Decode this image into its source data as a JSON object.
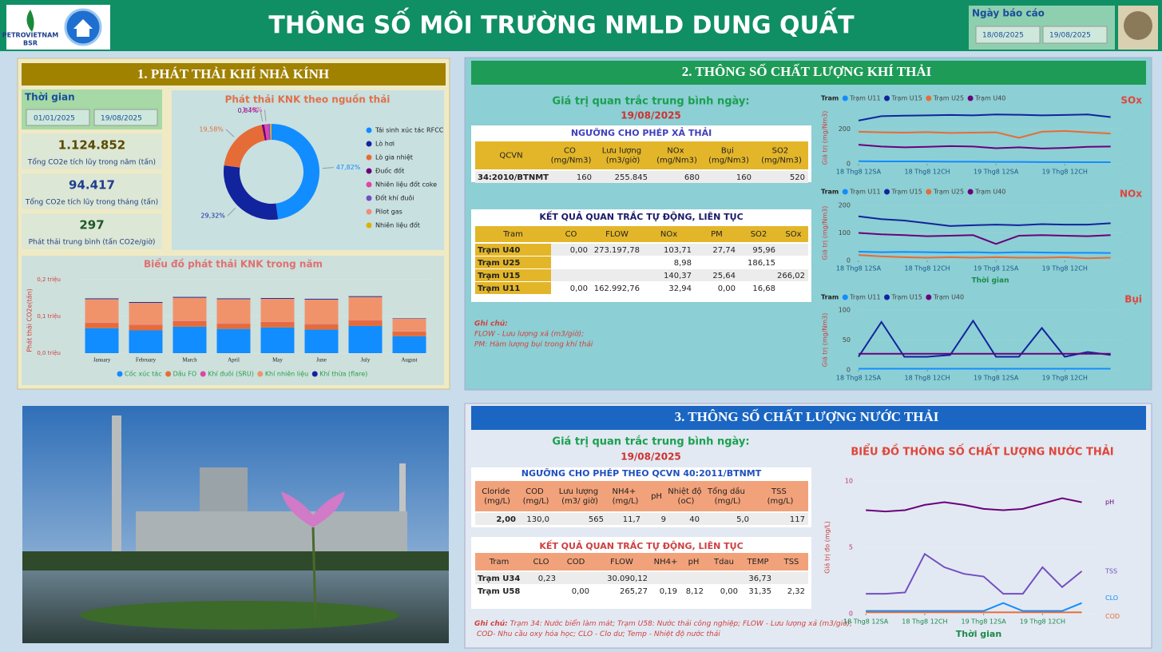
{
  "header": {
    "title": "THÔNG SỐ MÔI TRƯỜNG NMLD DUNG QUẤT",
    "logo_text": "PETROVIETNAM",
    "logo_sub": "BSR",
    "report_label": "Ngày báo cáo",
    "date_from": "18/08/2025",
    "date_to": "19/08/2025"
  },
  "section1": {
    "title": "1. PHÁT THẢI KHÍ NHÀ KÍNH",
    "time_label": "Thời gian",
    "date_from": "01/01/2025",
    "date_to": "19/08/2025",
    "kpis": [
      {
        "value": "1.124.852",
        "label": "Tổng CO2e tích lũy trong năm (tấn)"
      },
      {
        "value": "94.417",
        "label": "Tổng CO2e tích lũy trong tháng (tấn)"
      },
      {
        "value": "297",
        "label": "Phát thải trung bình (tấn CO2e/giờ)"
      }
    ]
  },
  "section2": {
    "title": "2. THÔNG SỐ CHẤT LƯỢNG KHÍ THẢI",
    "avg_label": "Giá trị quan trắc trung bình ngày:",
    "avg_date": "19/08/2025",
    "limit_table": {
      "title": "NGƯỠNG CHO PHÉP XẢ THẢI",
      "header": [
        "QCVN",
        "CO (mg/Nm3)",
        "Lưu lượng (m3/giờ)",
        "NOx (mg/Nm3)",
        "Bụi (mg/Nm3)",
        "SO2 (mg/Nm3)"
      ],
      "rows": [
        [
          "34:2010/BTNMT",
          "160",
          "255.845",
          "680",
          "160",
          "520"
        ]
      ]
    },
    "auto_table": {
      "title": "KẾT QUẢ QUAN TRẮC TỰ ĐỘNG, LIÊN TỤC",
      "header": [
        "Tram",
        "CO",
        "FLOW",
        "NOx",
        "PM",
        "SO2",
        "SOx"
      ],
      "rows": [
        [
          "Trạm U40",
          "0,00",
          "273.197,78",
          "103,71",
          "27,74",
          "95,96",
          null
        ],
        [
          "Trạm U25",
          null,
          null,
          "8,98",
          null,
          "186,15",
          null
        ],
        [
          "Trạm U15",
          null,
          null,
          "140,37",
          "25,64",
          null,
          "266,02"
        ],
        [
          "Trạm U11",
          "0,00",
          "162.992,76",
          "32,94",
          "0,00",
          "16,68",
          null
        ]
      ]
    },
    "notes": [
      "Ghi chú:",
      "FLOW - Lưu lượng xả (m3/giờ);",
      "PM: Hàm lượng bụi trong khí thải"
    ]
  },
  "section3": {
    "title": "3. THÔNG SỐ CHẤT LƯỢNG NƯỚC THẢI",
    "avg_label": "Giá trị quan trắc trung bình ngày:",
    "avg_date": "19/08/2025",
    "limit_table": {
      "title": "NGƯỠNG CHO PHÉP THEO QCVN 40:2011/BTNMT",
      "header": [
        "Cloride (mg/L)",
        "COD (mg/L)",
        "Lưu lượng (m3/ giờ)",
        "NH4+ (mg/L)",
        "pH",
        "Nhiệt độ (oC)",
        "Tổng dầu (mg/L)",
        "TSS (mg/L)"
      ],
      "rows": [
        [
          "2,00",
          "130,0",
          "565",
          "11,7",
          "9",
          "40",
          "5,0",
          "117"
        ]
      ]
    },
    "auto_table": {
      "title": "KẾT QUẢ QUAN TRẮC TỰ ĐỘNG, LIÊN TỤC",
      "header": [
        "Tram",
        "CLO",
        "COD",
        "FLOW",
        "NH4+",
        "pH",
        "Tdau",
        "TEMP",
        "TSS"
      ],
      "rows": [
        [
          "Trạm U34",
          "0,23",
          null,
          "30.090,12",
          null,
          null,
          null,
          "36,73",
          null
        ],
        [
          "Trạm U58",
          null,
          "0,00",
          "265,27",
          "0,19",
          "8,12",
          "0,00",
          "31,35",
          "2,32"
        ]
      ]
    },
    "note_label": "Ghi chú:",
    "note": "Trạm 34: Nước biển làm mát; Trạm U58: Nước thải công nghiệp; FLOW - Lưu lượng xả (m3/giờ);  COD- Nhu cầu oxy hóa học; CLO - Clo dư; Temp - Nhiệt độ nước thải"
  },
  "chart_data": [
    {
      "type": "pie",
      "title": "Phát thải KNK theo nguồn thải",
      "categories": [
        "Tái sinh xúc tác RFCC",
        "Lò hơi",
        "Lò gia nhiệt",
        "Đuốc đốt",
        "Nhiên liệu đốt coke",
        "Đốt khí đuôi",
        "Pilot gas",
        "Nhiên liệu đốt"
      ],
      "values": [
        47.82,
        29.32,
        19.58,
        0.84,
        1.38,
        0.5,
        0.3,
        0.26
      ],
      "value_labels": [
        "47,82%",
        "29,32%",
        "19,58%",
        "0,84%",
        "1,38%",
        null,
        null,
        null
      ],
      "colors": [
        "#118dff",
        "#12239e",
        "#e66c37",
        "#6b007b",
        "#e044a7",
        "#744ec2",
        "#f08c80",
        "#d9b300"
      ]
    },
    {
      "type": "bar",
      "stacked": true,
      "title": "Biểu đồ phát thải KNK trong năm",
      "y_label": "Phát thải CO2e(tấn)",
      "categories": [
        "January",
        "February",
        "March",
        "April",
        "May",
        "June",
        "July",
        "August"
      ],
      "ylim": [
        0,
        200000
      ],
      "yticks": [
        {
          "value": 0,
          "label": "0,0 triệu"
        },
        {
          "value": 100000,
          "label": "0,1 triệu"
        },
        {
          "value": 200000,
          "label": "0,2 triệu"
        }
      ],
      "series": [
        {
          "name": "Cốc xúc tác",
          "color": "#118dff",
          "values": [
            68000,
            62000,
            72000,
            66000,
            70000,
            64000,
            74000,
            46000
          ]
        },
        {
          "name": "Dầu FO",
          "color": "#e66c37",
          "values": [
            14000,
            14000,
            14000,
            14000,
            14000,
            14000,
            14000,
            12000
          ]
        },
        {
          "name": "Khí đuôi (SRU)",
          "color": "#e044a7",
          "values": [
            1000,
            1000,
            1000,
            1000,
            1000,
            1000,
            1000,
            1000
          ]
        },
        {
          "name": "Khí nhiên liệu",
          "color": "#f0936b",
          "values": [
            64000,
            60000,
            64000,
            66000,
            63000,
            67000,
            64000,
            35000
          ]
        },
        {
          "name": "Khí thừa (flare)",
          "color": "#12239e",
          "values": [
            2000,
            2000,
            2000,
            2000,
            2000,
            2000,
            2000,
            1000
          ]
        }
      ]
    },
    {
      "type": "line",
      "title": "SOx",
      "legend_title": "Tram",
      "y_label": "Giá trị (mg/Nm3)",
      "x": [
        0,
        4,
        8,
        12,
        16,
        20,
        24,
        28,
        32,
        36,
        40,
        44
      ],
      "xlim": [
        0,
        46
      ],
      "xticks": [
        {
          "value": 0,
          "label": "18 Thg8 12SA"
        },
        {
          "value": 12,
          "label": "18 Thg8 12CH"
        },
        {
          "value": 24,
          "label": "19 Thg8 12SA"
        },
        {
          "value": 36,
          "label": "19 Thg8 12CH"
        }
      ],
      "ylim": [
        0,
        300
      ],
      "yticks": [
        0,
        200
      ],
      "series": [
        {
          "name": "Trạm U11",
          "color": "#118dff",
          "values": [
            15,
            14,
            14,
            13,
            12,
            12,
            11,
            11,
            10,
            10,
            9,
            9
          ]
        },
        {
          "name": "Trạm U15",
          "color": "#12239e",
          "values": [
            250,
            275,
            278,
            280,
            282,
            280,
            285,
            283,
            280,
            282,
            285,
            270
          ]
        },
        {
          "name": "Trạm U25",
          "color": "#e66c37",
          "values": [
            185,
            182,
            180,
            183,
            178,
            180,
            182,
            150,
            185,
            190,
            182,
            175
          ]
        },
        {
          "name": "Trạm U40",
          "color": "#6b007b",
          "values": [
            110,
            100,
            95,
            98,
            102,
            100,
            90,
            95,
            88,
            92,
            98,
            100
          ]
        }
      ]
    },
    {
      "type": "line",
      "title": "NOx",
      "legend_title": "Tram",
      "y_label": "Giá trị (mg/Nm3)",
      "x_label": "Thời gian",
      "x": [
        0,
        4,
        8,
        12,
        16,
        20,
        24,
        28,
        32,
        36,
        40,
        44
      ],
      "xlim": [
        0,
        46
      ],
      "xticks": [
        {
          "value": 0,
          "label": "18 Thg8 12SA"
        },
        {
          "value": 12,
          "label": "18 Thg8 12CH"
        },
        {
          "value": 24,
          "label": "19 Thg8 12SA"
        },
        {
          "value": 36,
          "label": "19 Thg8 12CH"
        }
      ],
      "ylim": [
        0,
        200
      ],
      "yticks": [
        0,
        100,
        200
      ],
      "series": [
        {
          "name": "Trạm U11",
          "color": "#118dff",
          "values": [
            32,
            30,
            31,
            30,
            29,
            30,
            28,
            30,
            29,
            28,
            28,
            27
          ]
        },
        {
          "name": "Trạm U15",
          "color": "#12239e",
          "values": [
            160,
            150,
            145,
            135,
            125,
            128,
            130,
            128,
            132,
            130,
            130,
            135
          ]
        },
        {
          "name": "Trạm U25",
          "color": "#e66c37",
          "values": [
            20,
            15,
            12,
            10,
            12,
            10,
            12,
            10,
            10,
            12,
            8,
            10
          ]
        },
        {
          "name": "Trạm U40",
          "color": "#6b007b",
          "values": [
            100,
            95,
            92,
            88,
            90,
            92,
            60,
            90,
            92,
            90,
            88,
            92
          ]
        }
      ]
    },
    {
      "type": "line",
      "title": "Bụi",
      "legend_title": "Tram",
      "y_label": "Giá trị (mg/Nm3)",
      "x": [
        0,
        4,
        8,
        12,
        16,
        20,
        24,
        28,
        32,
        36,
        40,
        44
      ],
      "xlim": [
        0,
        46
      ],
      "xticks": [
        {
          "value": 0,
          "label": "18 Thg8 12SA"
        },
        {
          "value": 12,
          "label": "18 Thg8 12CH"
        },
        {
          "value": 24,
          "label": "19 Thg8 12SA"
        },
        {
          "value": 36,
          "label": "19 Thg8 12CH"
        }
      ],
      "ylim": [
        0,
        100
      ],
      "yticks": [
        0,
        50,
        100
      ],
      "series": [
        {
          "name": "Trạm U11",
          "color": "#118dff",
          "values": [
            2,
            2,
            2,
            2,
            2,
            2,
            2,
            2,
            2,
            2,
            2,
            2
          ]
        },
        {
          "name": "Trạm U15",
          "color": "#12239e",
          "values": [
            22,
            80,
            22,
            22,
            25,
            82,
            22,
            22,
            70,
            22,
            30,
            25
          ]
        },
        {
          "name": "Trạm U40",
          "color": "#6b007b",
          "values": [
            27,
            27,
            27,
            27,
            27,
            27,
            27,
            27,
            27,
            27,
            27,
            27
          ]
        }
      ]
    },
    {
      "type": "line",
      "title": "BIỂU ĐỒ THÔNG SỐ CHẤT LƯỢNG NƯỚC THẢI",
      "y_label": "Giá trị đo (mg/L)",
      "x_label": "Thời gian",
      "end_labels": true,
      "x": [
        0,
        4,
        8,
        12,
        16,
        20,
        24,
        28,
        32,
        36,
        40,
        44
      ],
      "xlim": [
        -1,
        47
      ],
      "xticks": [
        {
          "value": 0,
          "label": "18 Thg8 12SA"
        },
        {
          "value": 12,
          "label": "18 Thg8 12CH"
        },
        {
          "value": 24,
          "label": "19 Thg8 12SA"
        },
        {
          "value": 36,
          "label": "19 Thg8 12CH"
        }
      ],
      "ylim": [
        0,
        10
      ],
      "yticks": [
        0,
        5,
        10
      ],
      "series": [
        {
          "name": "pH",
          "color": "#6b007b",
          "values": [
            7.8,
            7.7,
            7.8,
            8.2,
            8.4,
            8.2,
            7.9,
            7.8,
            7.9,
            8.3,
            8.7,
            8.4
          ]
        },
        {
          "name": "TSS",
          "color": "#744ec2",
          "values": [
            1.5,
            1.5,
            1.6,
            4.5,
            3.5,
            3.0,
            2.8,
            1.5,
            1.5,
            3.5,
            2.0,
            3.2
          ]
        },
        {
          "name": "CLO",
          "color": "#118dff",
          "values": [
            0.2,
            0.2,
            0.2,
            0.2,
            0.2,
            0.2,
            0.2,
            0.8,
            0.2,
            0.2,
            0.2,
            0.8
          ]
        },
        {
          "name": "COD",
          "color": "#e66c37",
          "values": [
            0.1,
            0.1,
            0.1,
            0.1,
            0.1,
            0.1,
            0.1,
            0.1,
            0.1,
            0.1,
            0.1,
            0.1
          ]
        }
      ]
    }
  ]
}
